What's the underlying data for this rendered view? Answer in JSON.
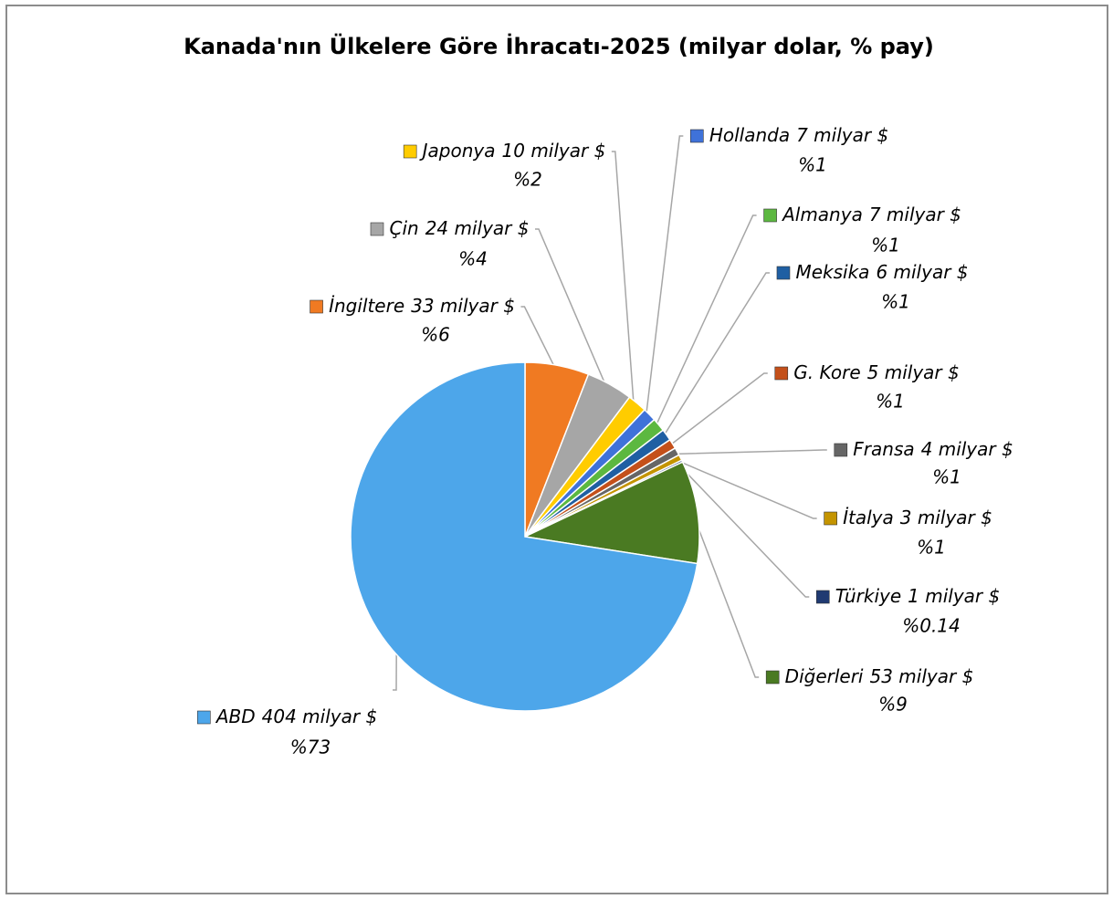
{
  "chart_data": {
    "type": "pie",
    "title": "Kanada'nın Ülkelere Göre İhracatı-2025 (milyar dolar, % pay)",
    "categories": [
      "İngiltere",
      "Çin",
      "Japonya",
      "Hollanda",
      "Almanya",
      "Meksika",
      "G. Kore",
      "Fransa",
      "İtalya",
      "Türkiye",
      "Diğerleri",
      "ABD"
    ],
    "values": [
      33,
      24,
      10,
      7,
      7,
      6,
      5,
      4,
      3,
      1,
      53,
      404
    ],
    "value_labels": [
      "33 milyar $",
      "24 milyar $",
      "10 milyar $",
      "7 milyar $",
      "7 milyar $",
      "6 milyar $",
      "5 milyar $",
      "4 milyar $",
      "3 milyar $",
      "1 milyar $",
      "53 milyar $",
      "404 milyar $"
    ],
    "shares": [
      6,
      4,
      2,
      1,
      1,
      1,
      1,
      1,
      1,
      0.14,
      9,
      73
    ],
    "share_labels": [
      "%6",
      "%4",
      "%2",
      "%1",
      "%1",
      "%1",
      "%1",
      "%1",
      "%1",
      "%0.14",
      "%9",
      "%73"
    ],
    "colors": [
      "#f07a22",
      "#a6a6a6",
      "#ffcc00",
      "#3f72d9",
      "#5cb840",
      "#1f5fa3",
      "#c4501a",
      "#666666",
      "#c49400",
      "#203a72",
      "#4a7a22",
      "#4da6ea"
    ]
  }
}
